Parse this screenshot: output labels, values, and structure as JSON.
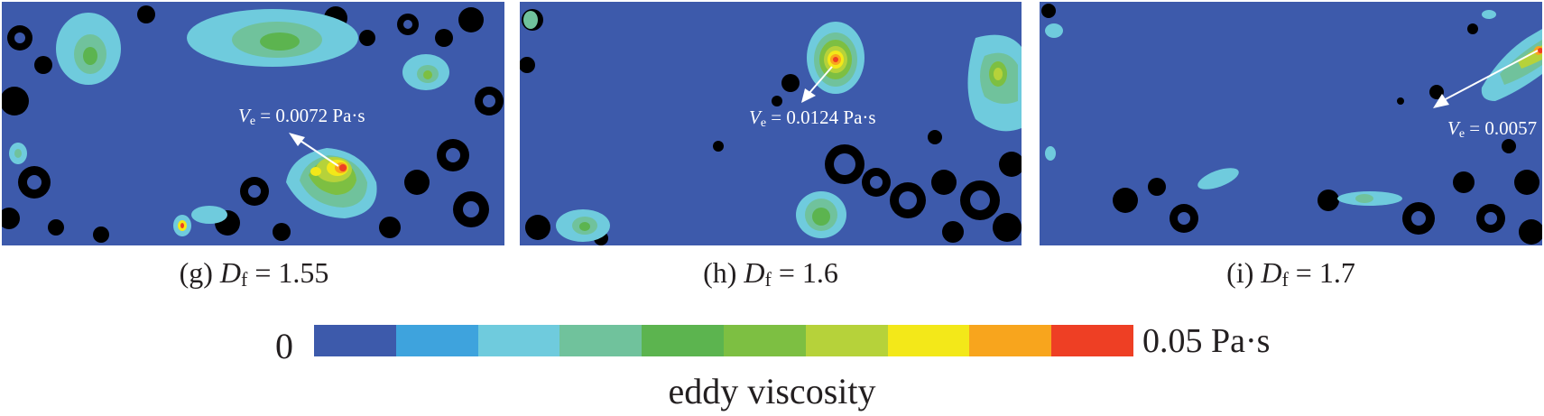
{
  "colors": {
    "background_flow": "#3d5aab",
    "solid_phase": "#000000",
    "scale": [
      "#3d5aab",
      "#3ea3dd",
      "#6fcbdd",
      "#70c29c",
      "#5cb44f",
      "#7dbf42",
      "#b6d23a",
      "#f3e819",
      "#f8a51d",
      "#ee3f24"
    ]
  },
  "panels": [
    {
      "id": "g",
      "caption_prefix": "(g) ",
      "df_symbol": "D",
      "df_sub": "f",
      "caption_value": " = 1.55",
      "annotation": {
        "symbol": "V",
        "sub": "e",
        "text": " = 0.0072 Pa·s"
      }
    },
    {
      "id": "h",
      "caption_prefix": "(h) ",
      "df_symbol": "D",
      "df_sub": "f",
      "caption_value": " = 1.6",
      "annotation": {
        "symbol": "V",
        "sub": "e",
        "text": " = 0.0124 Pa·s"
      }
    },
    {
      "id": "i",
      "caption_prefix": "(i) ",
      "df_symbol": "D",
      "df_sub": "f",
      "caption_value": " = 1.7",
      "annotation": {
        "symbol": "V",
        "sub": "e",
        "text": " = 0.0057"
      }
    }
  ],
  "colorbar": {
    "min_label": "0",
    "max_label": "0.05 Pa·s",
    "title": "eddy viscosity"
  }
}
